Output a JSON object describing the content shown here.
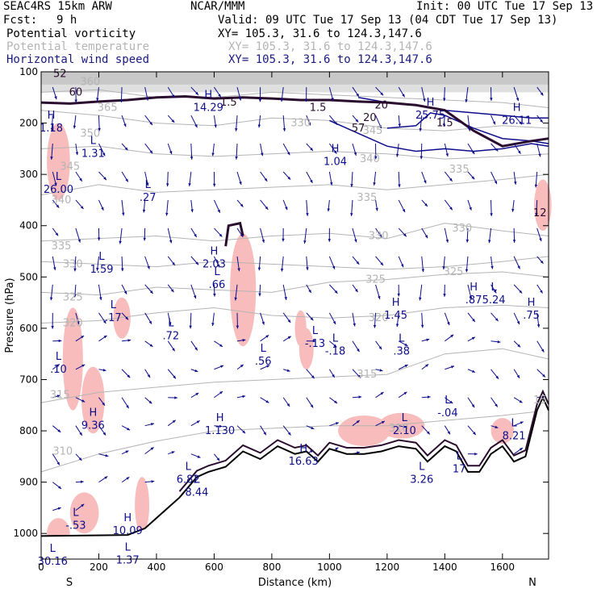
{
  "header": {
    "model": "SEAC4RS 15km ARW",
    "org": "NCAR/MMM",
    "init": "Init: 00 UTC Tue 17 Sep 13",
    "fcst_label": "Fcst:",
    "fcst_value": "9 h",
    "valid": "Valid: 09 UTC Tue 17 Sep 13 (04 CDT Tue 17 Sep 13)"
  },
  "fields": [
    {
      "name": "Potential vorticity",
      "xy": "XY= 105.3, 31.6 to 124.3,147.6",
      "color": "#000000"
    },
    {
      "name": "Potential temperature",
      "xy": "XY= 105.3, 31.6 to 124.3,147.6",
      "color": "#b4b4b4"
    },
    {
      "name": "Horizontal wind speed",
      "xy": "XY= 105.3, 31.6 to 124.3,147.6",
      "color": "#1a1a80"
    }
  ],
  "chart_data": {
    "type": "cross-section",
    "xlabel": "Distance (km)",
    "ylabel": "Pressure (hPa)",
    "xlim": [
      0,
      1760
    ],
    "ylim": [
      1050,
      100
    ],
    "x_ticks": [
      0,
      200,
      400,
      600,
      800,
      1000,
      1200,
      1400,
      1600
    ],
    "y_ticks": [
      100,
      200,
      300,
      400,
      500,
      600,
      700,
      800,
      900,
      1000
    ],
    "x_end_labels": {
      "left": "S",
      "right": "N"
    },
    "colors": {
      "theta": "#b4b4b4",
      "pv": "#2a0d2e",
      "wind": "#0d0d8c",
      "pv_shade": "#f8bcbc",
      "terrain": "#000000"
    },
    "theta_labels": [
      {
        "text": "365",
        "x": 230,
        "p": 170
      },
      {
        "text": "360",
        "x": 170,
        "p": 120
      },
      {
        "text": "350",
        "x": 170,
        "p": 220
      },
      {
        "text": "345",
        "x": 100,
        "p": 285
      },
      {
        "text": "340",
        "x": 70,
        "p": 350
      },
      {
        "text": "335",
        "x": 70,
        "p": 440
      },
      {
        "text": "330",
        "x": 110,
        "p": 475
      },
      {
        "text": "325",
        "x": 110,
        "p": 540
      },
      {
        "text": "320",
        "x": 110,
        "p": 590
      },
      {
        "text": "315",
        "x": 65,
        "p": 730
      },
      {
        "text": "310",
        "x": 75,
        "p": 840
      },
      {
        "text": "330",
        "x": 900,
        "p": 200
      },
      {
        "text": "345",
        "x": 1150,
        "p": 215
      },
      {
        "text": "340",
        "x": 1140,
        "p": 270
      },
      {
        "text": "335",
        "x": 1450,
        "p": 290
      },
      {
        "text": "335",
        "x": 1130,
        "p": 345
      },
      {
        "text": "330",
        "x": 1170,
        "p": 420
      },
      {
        "text": "330",
        "x": 1460,
        "p": 405
      },
      {
        "text": "325",
        "x": 1430,
        "p": 490
      },
      {
        "text": "325",
        "x": 1160,
        "p": 505
      },
      {
        "text": "320",
        "x": 1170,
        "p": 580
      },
      {
        "text": "315",
        "x": 1130,
        "p": 690
      },
      {
        "text": "15",
        "x": 1730,
        "p": 740
      },
      {
        "text": "310",
        "x": 1240,
        "p": 795
      }
    ],
    "theta_lines": [
      {
        "x": [
          0,
          200,
          400,
          600,
          800,
          1000,
          1200,
          1400,
          1600,
          1760
        ],
        "p": [
          140,
          135,
          150,
          150,
          140,
          145,
          150,
          155,
          160,
          170
        ]
      },
      {
        "x": [
          0,
          200,
          400,
          600,
          800,
          1000,
          1200,
          1400,
          1600,
          1760
        ],
        "p": [
          175,
          185,
          200,
          205,
          190,
          195,
          210,
          215,
          205,
          210
        ]
      },
      {
        "x": [
          0,
          200,
          400,
          600,
          800,
          1000,
          1200,
          1400,
          1600,
          1760
        ],
        "p": [
          250,
          245,
          260,
          265,
          260,
          255,
          260,
          270,
          265,
          260
        ]
      },
      {
        "x": [
          0,
          200,
          400,
          600,
          800,
          1000,
          1200,
          1400,
          1600,
          1760
        ],
        "p": [
          340,
          320,
          335,
          330,
          325,
          320,
          330,
          320,
          310,
          300
        ]
      },
      {
        "x": [
          0,
          200,
          400,
          600,
          800,
          1000,
          1200,
          1400,
          1600,
          1760
        ],
        "p": [
          430,
          425,
          420,
          430,
          420,
          415,
          425,
          395,
          410,
          420
        ]
      },
      {
        "x": [
          0,
          200,
          400,
          600,
          800,
          1000,
          1200,
          1400,
          1600,
          1760
        ],
        "p": [
          470,
          475,
          480,
          470,
          475,
          480,
          485,
          480,
          470,
          460
        ]
      },
      {
        "x": [
          0,
          200,
          400,
          600,
          800,
          1000,
          1200,
          1400,
          1600,
          1760
        ],
        "p": [
          530,
          535,
          520,
          525,
          530,
          510,
          505,
          495,
          490,
          500
        ]
      },
      {
        "x": [
          0,
          200,
          400,
          600,
          800,
          1000,
          1200,
          1400,
          1600,
          1760
        ],
        "p": [
          590,
          585,
          570,
          560,
          575,
          580,
          575,
          560,
          555,
          560
        ]
      },
      {
        "x": [
          0,
          200,
          400,
          600,
          800,
          1000,
          1200,
          1400,
          1600,
          1760
        ],
        "p": [
          745,
          725,
          715,
          705,
          700,
          695,
          690,
          650,
          640,
          660
        ]
      },
      {
        "x": [
          0,
          200,
          400,
          600,
          800,
          1000,
          1200,
          1400,
          1600,
          1760
        ],
        "p": [
          880,
          845,
          820,
          800,
          795,
          790,
          790,
          780,
          770,
          760
        ]
      }
    ],
    "pv_extrema": [
      {
        "type": "H",
        "value": "14.29",
        "x": 580,
        "p": 170
      },
      {
        "type": "H",
        "value": "25.75",
        "x": 1350,
        "p": 185
      },
      {
        "type": "H",
        "value": "26.11",
        "x": 1650,
        "p": 195
      },
      {
        "type": "H",
        "value": "1.18",
        "x": 35,
        "p": 210
      },
      {
        "type": "L",
        "value": "1.31",
        "x": 180,
        "p": 260
      },
      {
        "type": "H",
        "value": "1.04",
        "x": 1020,
        "p": 275
      },
      {
        "type": "L",
        "value": "26.00",
        "x": 60,
        "p": 330
      },
      {
        "type": "L",
        "value": ".27",
        "x": 370,
        "p": 345
      },
      {
        "type": "H",
        "value": "2.03",
        "x": 600,
        "p": 475
      },
      {
        "type": "L",
        "value": "1.59",
        "x": 210,
        "p": 485
      },
      {
        "type": "L",
        "value": ".66",
        "x": 610,
        "p": 515
      },
      {
        "type": "H",
        "value": ".87",
        "x": 1500,
        "p": 545
      },
      {
        "type": "L",
        "value": "5.24",
        "x": 1570,
        "p": 545
      },
      {
        "type": "H",
        "value": "1.45",
        "x": 1230,
        "p": 575
      },
      {
        "type": "L",
        "value": ".17",
        "x": 250,
        "p": 580
      },
      {
        "type": "H",
        "value": ".75",
        "x": 1700,
        "p": 575
      },
      {
        "type": "L",
        "value": ".72",
        "x": 450,
        "p": 615
      },
      {
        "type": "L",
        "value": "-.13",
        "x": 950,
        "p": 630
      },
      {
        "type": "L",
        "value": "-.18",
        "x": 1020,
        "p": 645
      },
      {
        "type": "L",
        "value": ".38",
        "x": 1250,
        "p": 645
      },
      {
        "type": "L",
        "value": ".56",
        "x": 770,
        "p": 665
      },
      {
        "type": "L",
        "value": ".10",
        "x": 60,
        "p": 680
      },
      {
        "type": "L",
        "value": "-.04",
        "x": 1410,
        "p": 765
      },
      {
        "type": "H",
        "value": "9.36",
        "x": 180,
        "p": 790
      },
      {
        "type": "H",
        "value": "1.130",
        "x": 620,
        "p": 800
      },
      {
        "type": "L",
        "value": "2.10",
        "x": 1260,
        "p": 800
      },
      {
        "type": "L",
        "value": "8.21",
        "x": 1640,
        "p": 810
      },
      {
        "type": "H",
        "value": "16.63",
        "x": 910,
        "p": 860
      },
      {
        "type": "L",
        "value": "17",
        "x": 1450,
        "p": 875
      },
      {
        "type": "L",
        "value": "3.26",
        "x": 1320,
        "p": 895
      },
      {
        "type": "L",
        "value": "6.82",
        "x": 510,
        "p": 895
      },
      {
        "type": "L",
        "value": "8.44",
        "x": 540,
        "p": 920
      },
      {
        "type": "L",
        "value": "-.53",
        "x": 120,
        "p": 985
      },
      {
        "type": "H",
        "value": "10.09",
        "x": 300,
        "p": 995
      },
      {
        "type": "L",
        "value": "30.16",
        "x": 40,
        "p": 1055
      },
      {
        "type": "L",
        "value": "1.37",
        "x": 300,
        "p": 1052
      }
    ],
    "pv_contour_labels": [
      {
        "text": "1.5",
        "x": 650,
        "p": 160
      },
      {
        "text": "1.5",
        "x": 960,
        "p": 170
      },
      {
        "text": "1.5",
        "x": 1400,
        "p": 200
      },
      {
        "text": "20",
        "x": 1180,
        "p": 165
      },
      {
        "text": "20",
        "x": 1140,
        "p": 190
      },
      {
        "text": "57",
        "x": 1100,
        "p": 210
      },
      {
        "text": "52",
        "x": 65,
        "p": 104
      },
      {
        "text": "60",
        "x": 120,
        "p": 140
      },
      {
        "text": "12",
        "x": 1730,
        "p": 375
      }
    ],
    "wind_speed_contours": [
      {
        "x": [
          1100,
          1200,
          1300,
          1400,
          1500,
          1600,
          1700,
          1760
        ],
        "p": [
          150,
          160,
          165,
          175,
          180,
          185,
          190,
          190
        ]
      },
      {
        "x": [
          1200,
          1300,
          1350,
          1400,
          1500,
          1600,
          1700,
          1760
        ],
        "p": [
          210,
          205,
          180,
          185,
          210,
          230,
          235,
          240
        ]
      },
      {
        "x": [
          1000,
          1100,
          1200,
          1300,
          1400,
          1500,
          1600,
          1700,
          1760
        ],
        "p": [
          195,
          220,
          245,
          255,
          250,
          255,
          250,
          240,
          245
        ]
      }
    ]
  }
}
